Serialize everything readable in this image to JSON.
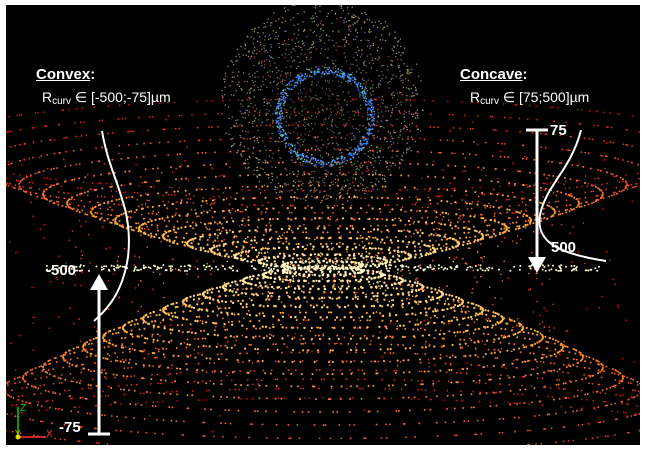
{
  "convex": {
    "title": "Convex",
    "suffix": ":",
    "range_prefix": "R",
    "range_sub": "curv",
    "range_text": " ∈ [-500;-75]µm",
    "top_value": "-500",
    "bottom_value": "-75"
  },
  "concave": {
    "title": "Concave",
    "suffix": ":",
    "range_prefix": "R",
    "range_sub": "curv",
    "range_text": " ∈ [75;500]µm",
    "top_value": "75",
    "bottom_value": "500"
  },
  "axes": {
    "z": "Z",
    "y": "Y",
    "x": "X",
    "z_color": "#00cc00",
    "y_color": "#dddd00",
    "x_color": "#ff3333"
  },
  "colors": {
    "background": "#000000",
    "annotation": "#ffffff",
    "hot_inner": "#fffbd0",
    "warm": "#ffb030",
    "outer": "#e81818",
    "sphere_outer": "#b0a070",
    "sphere_inner": "#3a80ff"
  }
}
